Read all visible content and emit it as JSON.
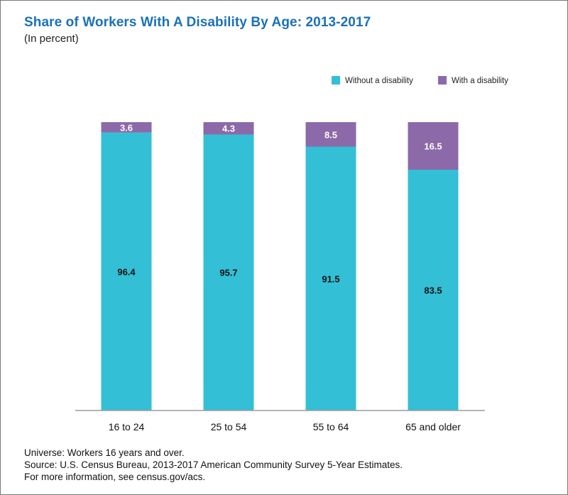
{
  "chart_data": {
    "type": "bar",
    "stacked": true,
    "title": "Share of Workers With A Disability By Age: 2013-2017",
    "subtitle": "(In percent)",
    "categories": [
      "16 to 24",
      "25 to 54",
      "55 to 64",
      "65 and older"
    ],
    "series": [
      {
        "name": "Without a disability",
        "color": "#33bfd6",
        "label_color": "#111111",
        "values": [
          96.4,
          95.7,
          91.5,
          83.5
        ]
      },
      {
        "name": "With a disability",
        "color": "#8c69a8",
        "label_color": "#ffffff",
        "values": [
          3.6,
          4.3,
          8.5,
          16.5
        ]
      }
    ],
    "ylim": [
      0,
      100
    ],
    "grid": false,
    "legend_position": "top-right"
  },
  "notes": {
    "universe": "Universe: Workers 16 years and over.",
    "source": "Source: U.S. Census Bureau, 2013-2017 American Community Survey 5-Year Estimates.",
    "more_info": "For more information, see census.gov/acs."
  }
}
